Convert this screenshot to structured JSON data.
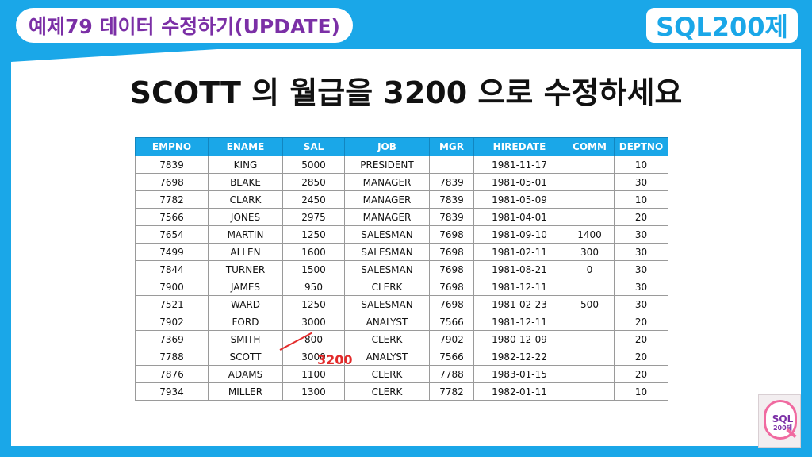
{
  "header": {
    "chapter": "예제79 데이터 수정하기(UPDATE)",
    "brand": "SQL200제"
  },
  "title": "SCOTT 의 월급을 3200 으로 수정하세요",
  "table": {
    "columns": [
      "EMPNO",
      "ENAME",
      "SAL",
      "JOB",
      "MGR",
      "HIREDATE",
      "COMM",
      "DEPTNO"
    ],
    "rows": [
      [
        "7839",
        "KING",
        "5000",
        "PRESIDENT",
        "",
        "1981-11-17",
        "",
        "10"
      ],
      [
        "7698",
        "BLAKE",
        "2850",
        "MANAGER",
        "7839",
        "1981-05-01",
        "",
        "30"
      ],
      [
        "7782",
        "CLARK",
        "2450",
        "MANAGER",
        "7839",
        "1981-05-09",
        "",
        "10"
      ],
      [
        "7566",
        "JONES",
        "2975",
        "MANAGER",
        "7839",
        "1981-04-01",
        "",
        "20"
      ],
      [
        "7654",
        "MARTIN",
        "1250",
        "SALESMAN",
        "7698",
        "1981-09-10",
        "1400",
        "30"
      ],
      [
        "7499",
        "ALLEN",
        "1600",
        "SALESMAN",
        "7698",
        "1981-02-11",
        "300",
        "30"
      ],
      [
        "7844",
        "TURNER",
        "1500",
        "SALESMAN",
        "7698",
        "1981-08-21",
        "0",
        "30"
      ],
      [
        "7900",
        "JAMES",
        "950",
        "CLERK",
        "7698",
        "1981-12-11",
        "",
        "30"
      ],
      [
        "7521",
        "WARD",
        "1250",
        "SALESMAN",
        "7698",
        "1981-02-23",
        "500",
        "30"
      ],
      [
        "7902",
        "FORD",
        "3000",
        "ANALYST",
        "7566",
        "1981-12-11",
        "",
        "20"
      ],
      [
        "7369",
        "SMITH",
        "800",
        "CLERK",
        "7902",
        "1980-12-09",
        "",
        "20"
      ],
      [
        "7788",
        "SCOTT",
        "3000",
        "ANALYST",
        "7566",
        "1982-12-22",
        "",
        "20"
      ],
      [
        "7876",
        "ADAMS",
        "1100",
        "CLERK",
        "7788",
        "1983-01-15",
        "",
        "20"
      ],
      [
        "7934",
        "MILLER",
        "1300",
        "CLERK",
        "7782",
        "1982-01-11",
        "",
        "10"
      ]
    ]
  },
  "annotation": {
    "new_value": "3200",
    "color": "#e32b2b"
  },
  "book_cover": {
    "title": "SQL",
    "subtitle": "200제"
  },
  "colors": {
    "accent": "#1aa7e8",
    "chapter_text": "#7b2fa6"
  }
}
